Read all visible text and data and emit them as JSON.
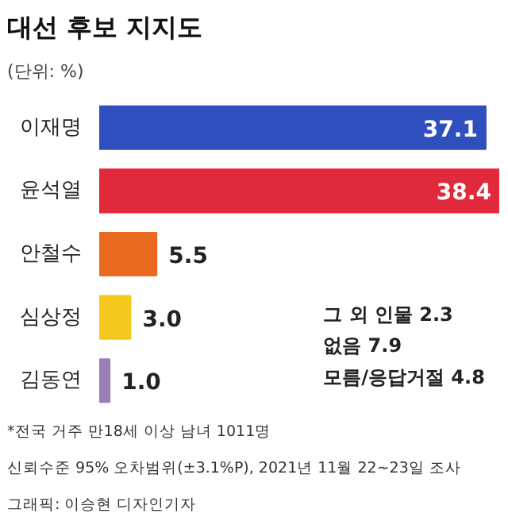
{
  "chart_data": {
    "type": "bar",
    "orientation": "horizontal",
    "title": "대선 후보 지지도",
    "subtitle": "(단위: %)",
    "categories": [
      "이재명",
      "윤석열",
      "안철수",
      "심상정",
      "김동연"
    ],
    "values": [
      37.1,
      38.4,
      5.5,
      3.0,
      1.0
    ],
    "colors": [
      "#2f4fbf",
      "#e0293b",
      "#ea6a1f",
      "#f6c81c",
      "#9b80b8"
    ],
    "value_labels": [
      "37.1",
      "38.4",
      "5.5",
      "3.0",
      "1.0"
    ],
    "annotations": [
      "그 외 인물   2.3",
      "없음   7.9",
      "모름/응답거절   4.8",
      "*전국 거주 만18세 이상 남녀 1011명",
      "신뢰수준 95% 오차범위(±3.1%P), 2021년 11월 22~23일 조사",
      "그래픽: 이승현 디자인기자"
    ]
  }
}
